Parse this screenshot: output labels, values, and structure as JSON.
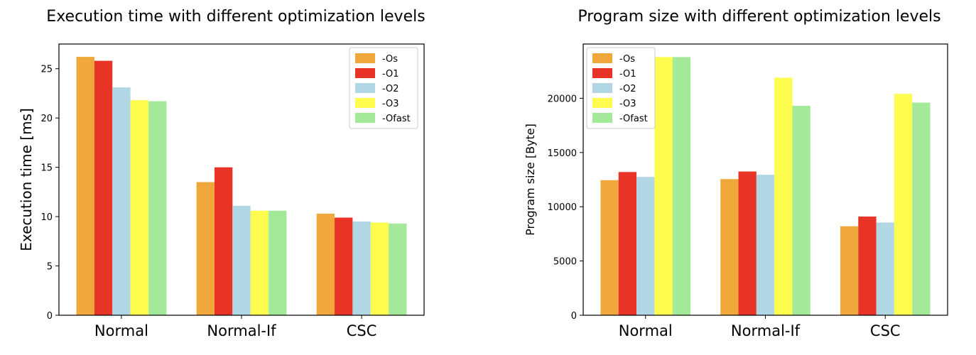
{
  "colors": {
    "-Os": "#f0a83c",
    "-O1": "#e83327",
    "-O2": "#b0d7e3",
    "-O3": "#fdfc4f",
    "-Ofast": "#a4e999"
  },
  "chart_data": [
    {
      "type": "bar",
      "title": "Execution time with different optimization levels",
      "xlabel": "",
      "ylabel": "Execution time [ms]",
      "categories": [
        "Normal",
        "Normal-If",
        "CSC"
      ],
      "ylim": [
        0,
        27.5
      ],
      "yticks": [
        0,
        5,
        10,
        15,
        20,
        25
      ],
      "ytick_labels": [
        "0",
        "5",
        "10",
        "15",
        "20",
        "25"
      ],
      "legend_position": "top-right",
      "grid": false,
      "series": [
        {
          "name": "-Os",
          "values": [
            26.2,
            13.5,
            10.3
          ]
        },
        {
          "name": "-O1",
          "values": [
            25.8,
            15.0,
            9.9
          ]
        },
        {
          "name": "-O2",
          "values": [
            23.1,
            11.1,
            9.5
          ]
        },
        {
          "name": "-O3",
          "values": [
            21.8,
            10.6,
            9.4
          ]
        },
        {
          "name": "-Ofast",
          "values": [
            21.7,
            10.6,
            9.3
          ]
        }
      ]
    },
    {
      "type": "bar",
      "title": "Program size with different optimization levels",
      "xlabel": "",
      "ylabel": "Program size [Byte]",
      "categories": [
        "Normal",
        "Normal-If",
        "CSC"
      ],
      "ylim": [
        0,
        25000
      ],
      "yticks": [
        0,
        5000,
        10000,
        15000,
        20000
      ],
      "ytick_labels": [
        "0",
        "5000",
        "10000",
        "15000",
        "20000"
      ],
      "legend_position": "top-left",
      "grid": false,
      "series": [
        {
          "name": "-Os",
          "values": [
            12450,
            12550,
            8200
          ]
        },
        {
          "name": "-O1",
          "values": [
            13200,
            13250,
            9100
          ]
        },
        {
          "name": "-O2",
          "values": [
            12750,
            12950,
            8550
          ]
        },
        {
          "name": "-O3",
          "values": [
            23800,
            21900,
            20400
          ]
        },
        {
          "name": "-Ofast",
          "values": [
            23800,
            19300,
            19600
          ]
        }
      ]
    }
  ]
}
